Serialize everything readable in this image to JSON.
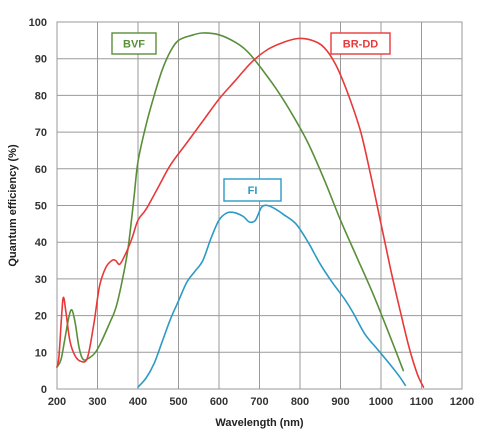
{
  "chart_data": {
    "type": "line",
    "xlabel": "Wavelength (nm)",
    "ylabel": "Quantum efficiency (%)",
    "xlim": [
      200,
      1200
    ],
    "ylim": [
      0,
      100
    ],
    "x_ticks": [
      "200",
      "300",
      "400",
      "500",
      "600",
      "700",
      "800",
      "900",
      "1000",
      "1100",
      "1200"
    ],
    "y_ticks": [
      "0",
      "10",
      "20",
      "30",
      "40",
      "50",
      "60",
      "70",
      "80",
      "90",
      "100"
    ],
    "grid": true,
    "series": [
      {
        "name": "BVF",
        "color": "#5a8f3a",
        "legend_position": "top-left",
        "points": [
          [
            200,
            6
          ],
          [
            210,
            8
          ],
          [
            220,
            14
          ],
          [
            230,
            20
          ],
          [
            237,
            21.5
          ],
          [
            245,
            18
          ],
          [
            255,
            11
          ],
          [
            265,
            8
          ],
          [
            280,
            8.5
          ],
          [
            295,
            10
          ],
          [
            310,
            13
          ],
          [
            330,
            18
          ],
          [
            345,
            22
          ],
          [
            360,
            29
          ],
          [
            375,
            38
          ],
          [
            390,
            52
          ],
          [
            400,
            62
          ],
          [
            420,
            72
          ],
          [
            440,
            80
          ],
          [
            460,
            87
          ],
          [
            480,
            92
          ],
          [
            500,
            95
          ],
          [
            530,
            96.3
          ],
          [
            560,
            97
          ],
          [
            600,
            96.5
          ],
          [
            640,
            94.5
          ],
          [
            670,
            92
          ],
          [
            700,
            88
          ],
          [
            740,
            82
          ],
          [
            780,
            75
          ],
          [
            820,
            67
          ],
          [
            860,
            57
          ],
          [
            900,
            46
          ],
          [
            940,
            36
          ],
          [
            980,
            26
          ],
          [
            1020,
            15
          ],
          [
            1055,
            5
          ]
        ]
      },
      {
        "name": "BR-DD",
        "color": "#e8393a",
        "legend_position": "top-right",
        "points": [
          [
            200,
            6
          ],
          [
            205,
            9
          ],
          [
            212,
            21
          ],
          [
            216,
            25
          ],
          [
            222,
            21
          ],
          [
            232,
            13
          ],
          [
            245,
            9
          ],
          [
            260,
            7.5
          ],
          [
            275,
            8.5
          ],
          [
            290,
            17
          ],
          [
            305,
            28
          ],
          [
            320,
            33
          ],
          [
            335,
            35
          ],
          [
            345,
            35
          ],
          [
            355,
            34
          ],
          [
            370,
            37
          ],
          [
            385,
            41
          ],
          [
            400,
            46
          ],
          [
            420,
            49
          ],
          [
            450,
            55
          ],
          [
            480,
            61
          ],
          [
            520,
            67
          ],
          [
            560,
            73
          ],
          [
            600,
            79
          ],
          [
            640,
            84
          ],
          [
            680,
            89
          ],
          [
            720,
            92.5
          ],
          [
            760,
            94.5
          ],
          [
            795,
            95.5
          ],
          [
            830,
            95
          ],
          [
            860,
            93
          ],
          [
            890,
            88
          ],
          [
            920,
            80
          ],
          [
            950,
            70
          ],
          [
            975,
            58
          ],
          [
            1000,
            45
          ],
          [
            1025,
            32
          ],
          [
            1050,
            20
          ],
          [
            1070,
            11
          ],
          [
            1090,
            4
          ],
          [
            1105,
            0.5
          ]
        ]
      },
      {
        "name": "FI",
        "color": "#2c9ac6",
        "legend_position": "center",
        "points": [
          [
            400,
            0.5
          ],
          [
            420,
            3
          ],
          [
            440,
            7
          ],
          [
            460,
            13
          ],
          [
            480,
            19
          ],
          [
            500,
            24
          ],
          [
            520,
            29
          ],
          [
            540,
            32
          ],
          [
            560,
            35
          ],
          [
            580,
            41
          ],
          [
            600,
            46
          ],
          [
            620,
            48
          ],
          [
            640,
            48
          ],
          [
            660,
            47
          ],
          [
            675,
            45.5
          ],
          [
            690,
            46
          ],
          [
            705,
            49.5
          ],
          [
            720,
            50
          ],
          [
            740,
            49
          ],
          [
            760,
            47.5
          ],
          [
            790,
            45
          ],
          [
            820,
            40
          ],
          [
            850,
            34
          ],
          [
            880,
            29
          ],
          [
            910,
            24.5
          ],
          [
            930,
            21
          ],
          [
            960,
            15
          ],
          [
            990,
            11
          ],
          [
            1020,
            7
          ],
          [
            1045,
            3.5
          ],
          [
            1060,
            1
          ]
        ]
      }
    ]
  }
}
